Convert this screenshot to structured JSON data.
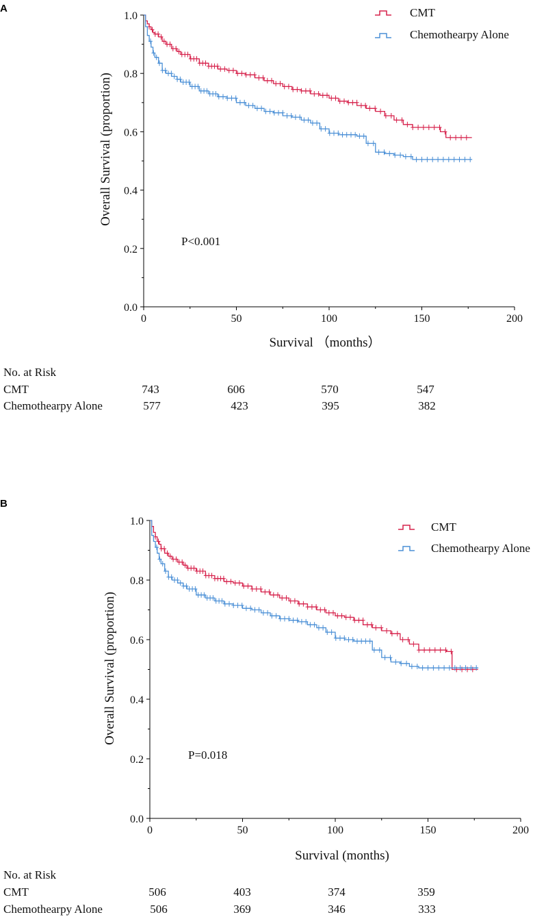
{
  "chart_data": [
    {
      "type": "line",
      "panel_label": "A",
      "xlabel": "Survival （months）",
      "ylabel": "Overall Survival (proportion)",
      "xlim": [
        0,
        200
      ],
      "ylim": [
        0,
        1
      ],
      "x_ticks": [
        "0",
        "50",
        "100",
        "150",
        "200"
      ],
      "y_ticks": [
        "0.0",
        "0.2",
        "0.4",
        "0.6",
        "0.8",
        "1.0"
      ],
      "legend_position": "top-right",
      "annotation": "P<0.001",
      "series": [
        {
          "name": "CMT",
          "color": "#d6204a",
          "x": [
            0,
            1,
            2,
            3,
            4,
            5,
            6,
            8,
            10,
            12,
            15,
            18,
            20,
            25,
            30,
            35,
            40,
            45,
            50,
            55,
            60,
            65,
            70,
            75,
            80,
            85,
            90,
            95,
            100,
            105,
            110,
            115,
            120,
            125,
            130,
            135,
            140,
            145,
            150,
            155,
            160,
            163,
            165,
            170,
            177
          ],
          "y": [
            1.0,
            0.98,
            0.97,
            0.96,
            0.95,
            0.94,
            0.935,
            0.925,
            0.91,
            0.9,
            0.885,
            0.875,
            0.865,
            0.85,
            0.835,
            0.825,
            0.815,
            0.81,
            0.8,
            0.795,
            0.785,
            0.775,
            0.765,
            0.755,
            0.745,
            0.74,
            0.73,
            0.725,
            0.715,
            0.705,
            0.7,
            0.69,
            0.68,
            0.67,
            0.655,
            0.64,
            0.625,
            0.615,
            0.615,
            0.615,
            0.6,
            0.58,
            0.58,
            0.58,
            0.58
          ]
        },
        {
          "name": "Chemothearpy Alone",
          "color": "#4a8fd6",
          "x": [
            0,
            1,
            2,
            3,
            4,
            5,
            6,
            8,
            10,
            12,
            15,
            18,
            20,
            25,
            30,
            35,
            40,
            45,
            50,
            55,
            60,
            65,
            70,
            75,
            80,
            85,
            90,
            95,
            100,
            105,
            110,
            115,
            120,
            125,
            130,
            135,
            140,
            145,
            150,
            155,
            160,
            165,
            170,
            177
          ],
          "y": [
            1.0,
            0.96,
            0.93,
            0.91,
            0.89,
            0.87,
            0.855,
            0.835,
            0.81,
            0.8,
            0.79,
            0.78,
            0.77,
            0.755,
            0.74,
            0.73,
            0.72,
            0.715,
            0.7,
            0.69,
            0.68,
            0.67,
            0.665,
            0.655,
            0.65,
            0.64,
            0.63,
            0.61,
            0.595,
            0.59,
            0.59,
            0.585,
            0.56,
            0.53,
            0.525,
            0.52,
            0.515,
            0.505,
            0.505,
            0.505,
            0.505,
            0.505,
            0.505,
            0.505
          ]
        }
      ],
      "risk_table": {
        "title": "No. at Risk",
        "rows": [
          {
            "label": "CMT",
            "values": [
              "743",
              "606",
              "570",
              "547"
            ]
          },
          {
            "label": "Chemothearpy Alone",
            "values": [
              "577",
              "423",
              "395",
              "382"
            ]
          }
        ]
      }
    },
    {
      "type": "line",
      "panel_label": "B",
      "xlabel": "Survival (months)",
      "ylabel": "Overall Survival (proportion)",
      "xlim": [
        0,
        200
      ],
      "ylim": [
        0,
        1
      ],
      "x_ticks": [
        "0",
        "50",
        "100",
        "150",
        "200"
      ],
      "y_ticks": [
        "0.0",
        "0.2",
        "0.4",
        "0.6",
        "0.8",
        "1.0"
      ],
      "legend_position": "top-right",
      "annotation": "P=0.018",
      "series": [
        {
          "name": "CMT",
          "color": "#d6204a",
          "x": [
            0,
            1,
            2,
            3,
            4,
            5,
            6,
            8,
            10,
            12,
            15,
            18,
            20,
            25,
            30,
            35,
            40,
            45,
            50,
            55,
            60,
            65,
            70,
            75,
            80,
            85,
            90,
            95,
            100,
            105,
            110,
            115,
            120,
            125,
            130,
            135,
            140,
            145,
            150,
            155,
            160,
            163,
            165,
            170,
            177
          ],
          "y": [
            1.0,
            0.98,
            0.96,
            0.945,
            0.93,
            0.92,
            0.905,
            0.89,
            0.88,
            0.87,
            0.86,
            0.85,
            0.84,
            0.83,
            0.815,
            0.805,
            0.795,
            0.79,
            0.78,
            0.77,
            0.76,
            0.75,
            0.74,
            0.73,
            0.72,
            0.71,
            0.7,
            0.69,
            0.68,
            0.675,
            0.665,
            0.65,
            0.64,
            0.63,
            0.62,
            0.6,
            0.585,
            0.565,
            0.565,
            0.565,
            0.56,
            0.5,
            0.5,
            0.5,
            0.5
          ]
        },
        {
          "name": "Chemothearpy Alone",
          "color": "#4a8fd6",
          "x": [
            0,
            1,
            2,
            3,
            4,
            5,
            6,
            8,
            10,
            12,
            15,
            18,
            20,
            25,
            30,
            35,
            40,
            45,
            50,
            55,
            60,
            65,
            70,
            75,
            80,
            85,
            90,
            95,
            100,
            105,
            110,
            115,
            120,
            125,
            130,
            135,
            140,
            145,
            150,
            155,
            160,
            165,
            170,
            177
          ],
          "y": [
            1.0,
            0.95,
            0.93,
            0.91,
            0.89,
            0.87,
            0.855,
            0.83,
            0.81,
            0.8,
            0.79,
            0.78,
            0.77,
            0.75,
            0.74,
            0.73,
            0.72,
            0.715,
            0.705,
            0.7,
            0.69,
            0.68,
            0.67,
            0.665,
            0.66,
            0.65,
            0.64,
            0.625,
            0.605,
            0.6,
            0.595,
            0.595,
            0.565,
            0.54,
            0.525,
            0.52,
            0.51,
            0.505,
            0.505,
            0.505,
            0.505,
            0.505,
            0.505,
            0.505
          ]
        }
      ],
      "risk_table": {
        "title": "No. at Risk",
        "rows": [
          {
            "label": "CMT",
            "values": [
              "506",
              "403",
              "374",
              "359"
            ]
          },
          {
            "label": "Chemothearpy Alone",
            "values": [
              "506",
              "369",
              "346",
              "333"
            ]
          }
        ]
      }
    }
  ]
}
